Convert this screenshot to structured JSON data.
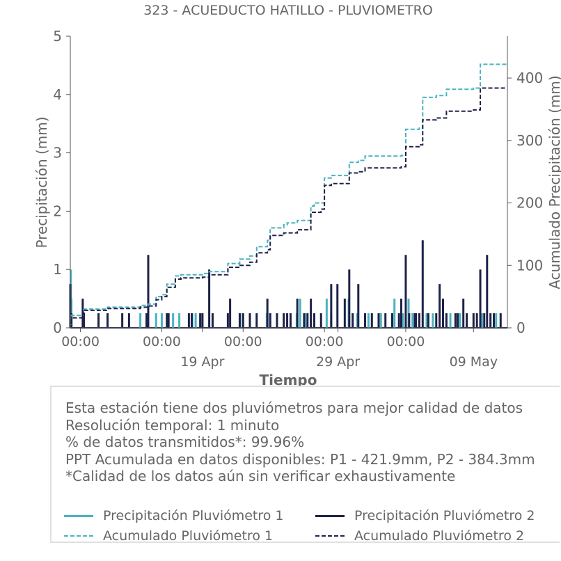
{
  "chart_data": {
    "type": "line",
    "title": "323 - ACUEDUCTO HATILLO - PLUVIOMETRO",
    "xlabel": "Tiempo",
    "ylabel_left": "Precipitación (mm)",
    "ylabel_right": "Acumulado Precipitación (mm)",
    "x_range": [
      "2025-04-09T06:00",
      "2025-05-11T12:00"
    ],
    "ylim_left": [
      0,
      5
    ],
    "ylim_right": [
      0,
      467
    ],
    "y_ticks_left": [
      0,
      1,
      2,
      3,
      4,
      5
    ],
    "y_ticks_right": [
      0,
      100,
      200,
      300,
      400
    ],
    "x_tick_labels": [
      {
        "t": "2025-04-10T00:00",
        "label": "00:00",
        "sub": ""
      },
      {
        "t": "2025-04-16T00:00",
        "label": "00:00",
        "sub": ""
      },
      {
        "t": "2025-04-19T00:00",
        "label": "",
        "sub": "19 Apr"
      },
      {
        "t": "2025-04-22T00:00",
        "label": "00:00",
        "sub": ""
      },
      {
        "t": "2025-04-29T00:00",
        "label": "",
        "sub": "29 Apr"
      },
      {
        "t": "2025-04-28T00:00",
        "label": "00:00",
        "sub": ""
      },
      {
        "t": "2025-05-04T00:00",
        "label": "00:00",
        "sub": ""
      },
      {
        "t": "2025-05-09T00:00",
        "label": "",
        "sub": "09 May"
      }
    ],
    "grid": false,
    "series": [
      {
        "name": "Precipitación Pluviómetro 1",
        "kind": "precip",
        "axis": "left",
        "color": "#4bb3c1",
        "events": [
          [
            "2025-04-09T07:00",
            1.0
          ],
          [
            "2025-04-09T08:00",
            0.5
          ],
          [
            "2025-04-10T06:00",
            0.25
          ],
          [
            "2025-04-14T10:00",
            0.25
          ],
          [
            "2025-04-15T14:00",
            0.25
          ],
          [
            "2025-04-16T00:00",
            0.25
          ],
          [
            "2025-04-16T20:00",
            0.25
          ],
          [
            "2025-04-17T07:00",
            0.25
          ],
          [
            "2025-04-18T06:00",
            0.25
          ],
          [
            "2025-04-18T12:00",
            0.25
          ],
          [
            "2025-04-19T00:00",
            0.25
          ],
          [
            "2025-04-21T19:00",
            0.25
          ],
          [
            "2025-04-22T12:00",
            0.25
          ],
          [
            "2025-04-23T18:00",
            0.25
          ],
          [
            "2025-04-24T00:00",
            0.25
          ],
          [
            "2025-04-26T05:00",
            0.5
          ],
          [
            "2025-04-26T14:00",
            0.25
          ],
          [
            "2025-04-28T04:00",
            0.5
          ],
          [
            "2025-04-28T12:00",
            0.25
          ],
          [
            "2025-04-29T19:00",
            0.5
          ],
          [
            "2025-05-01T06:00",
            0.25
          ],
          [
            "2025-05-03T19:00",
            0.25
          ],
          [
            "2025-05-03T04:00",
            0.5
          ],
          [
            "2025-05-04T05:00",
            0.5
          ],
          [
            "2025-05-04T12:00",
            0.25
          ],
          [
            "2025-05-05T13:00",
            0.25
          ],
          [
            "2025-05-07T07:00",
            0.25
          ],
          [
            "2025-05-08T00:00",
            0.25
          ],
          [
            "2025-05-09T15:00",
            0.25
          ],
          [
            "2025-05-10T16:00",
            0.25
          ],
          [
            "2025-04-25T23:00",
            0.25
          ],
          [
            "2025-04-27T00:00",
            0.25
          ],
          [
            "2025-04-30T10:00",
            0.25
          ],
          [
            "2025-05-02T04:00",
            0.25
          ],
          [
            "2025-05-04T17:00",
            0.25
          ],
          [
            "2025-05-06T00:00",
            0.25
          ]
        ]
      },
      {
        "name": "Precipitación Pluviómetro 2",
        "kind": "precip",
        "axis": "left",
        "color": "#1e2147",
        "events": [
          [
            "2025-04-09T06:00",
            0.75
          ],
          [
            "2025-04-09T08:00",
            0.25
          ],
          [
            "2025-04-10T04:00",
            0.5
          ],
          [
            "2025-04-10T06:00",
            0.25
          ],
          [
            "2025-04-11T08:00",
            0.25
          ],
          [
            "2025-04-12T00:00",
            0.25
          ],
          [
            "2025-04-13T02:00",
            0.25
          ],
          [
            "2025-04-13T14:00",
            0.25
          ],
          [
            "2025-04-14T21:00",
            0.25
          ],
          [
            "2025-04-15T00:00",
            1.25
          ],
          [
            "2025-04-16T09:00",
            0.25
          ],
          [
            "2025-04-16T12:00",
            0.25
          ],
          [
            "2025-04-18T00:00",
            0.25
          ],
          [
            "2025-04-18T05:00",
            0.25
          ],
          [
            "2025-04-19T00:00",
            0.25
          ],
          [
            "2025-04-19T18:00",
            0.25
          ],
          [
            "2025-04-20T21:00",
            0.25
          ],
          [
            "2025-04-21T01:00",
            0.5
          ],
          [
            "2025-04-21T18:00",
            0.25
          ],
          [
            "2025-04-22T00:00",
            0.25
          ],
          [
            "2025-04-22T12:00",
            0.25
          ],
          [
            "2025-04-23T00:00",
            0.25
          ],
          [
            "2025-04-23T19:00",
            0.5
          ],
          [
            "2025-04-24T00:00",
            0.25
          ],
          [
            "2025-04-24T12:00",
            0.25
          ],
          [
            "2025-04-25T00:00",
            0.25
          ],
          [
            "2025-04-26T00:00",
            0.5
          ],
          [
            "2025-04-25T06:00",
            0.25
          ],
          [
            "2025-04-25T12:00",
            0.25
          ],
          [
            "2025-04-26T12:00",
            0.25
          ],
          [
            "2025-04-26T18:00",
            0.25
          ],
          [
            "2025-04-27T06:00",
            0.25
          ],
          [
            "2025-04-28T12:00",
            0.75
          ],
          [
            "2025-04-28T23:00",
            0.75
          ],
          [
            "2025-04-29T12:00",
            0.5
          ],
          [
            "2025-04-29T20:00",
            1.0
          ],
          [
            "2025-04-30T02:00",
            0.25
          ],
          [
            "2025-04-30T12:00",
            0.75
          ],
          [
            "2025-05-01T00:00",
            0.25
          ],
          [
            "2025-05-01T12:00",
            0.25
          ],
          [
            "2025-05-02T00:00",
            0.25
          ],
          [
            "2025-05-02T12:00",
            0.25
          ],
          [
            "2025-05-03T00:00",
            0.25
          ],
          [
            "2025-05-04T06:00",
            0.25
          ],
          [
            "2025-05-05T16:00",
            0.25
          ],
          [
            "2025-05-06T06:00",
            0.25
          ],
          [
            "2025-05-07T16:00",
            0.25
          ],
          [
            "2025-05-07T20:00",
            0.25
          ],
          [
            "2025-05-08T06:00",
            0.5
          ],
          [
            "2025-05-09T06:00",
            0.25
          ],
          [
            "2025-05-09T19:00",
            0.25
          ],
          [
            "2025-05-10T00:00",
            1.25
          ],
          [
            "2025-05-10T12:00",
            0.25
          ],
          [
            "2025-05-11T00:00",
            0.25
          ],
          [
            "2025-05-05T00:00",
            0.25
          ],
          [
            "2025-04-19T12:00",
            1.0
          ],
          [
            "2025-04-18T20:00",
            0.25
          ],
          [
            "2025-04-27T00:00",
            0.5
          ],
          [
            "2025-04-27T18:00",
            0.25
          ],
          [
            "2025-05-03T12:00",
            0.25
          ],
          [
            "2025-05-03T16:00",
            0.5
          ],
          [
            "2025-05-04T00:00",
            1.25
          ],
          [
            "2025-05-04T16:00",
            0.25
          ],
          [
            "2025-05-04T18:00",
            0.25
          ],
          [
            "2025-05-06T18:00",
            0.5
          ],
          [
            "2025-05-05T06:00",
            1.5
          ],
          [
            "2025-05-06T12:00",
            0.75
          ],
          [
            "2025-05-07T00:00",
            0.25
          ],
          [
            "2025-05-08T12:00",
            0.25
          ],
          [
            "2025-05-09T00:00",
            0.25
          ],
          [
            "2025-05-09T12:00",
            1.0
          ],
          [
            "2025-05-10T06:00",
            0.25
          ]
        ]
      },
      {
        "name": "Acumulado Pluviómetro 1",
        "kind": "cumulative",
        "axis": "right",
        "color": "#4bb3c1",
        "steps": [
          [
            "2025-04-09T06:00",
            0
          ],
          [
            "2025-04-09T07:00",
            15
          ],
          [
            "2025-04-09T08:00",
            20
          ],
          [
            "2025-04-10T04:00",
            20
          ],
          [
            "2025-04-10T06:00",
            30
          ],
          [
            "2025-04-12T00:00",
            33
          ],
          [
            "2025-04-14T10:00",
            36
          ],
          [
            "2025-04-15T00:00",
            38
          ],
          [
            "2025-04-15T14:00",
            50
          ],
          [
            "2025-04-16T00:00",
            53
          ],
          [
            "2025-04-16T09:00",
            70
          ],
          [
            "2025-04-17T00:00",
            83
          ],
          [
            "2025-04-17T10:00",
            85
          ],
          [
            "2025-04-19T00:00",
            87
          ],
          [
            "2025-04-19T12:00",
            90
          ],
          [
            "2025-04-20T21:00",
            103
          ],
          [
            "2025-04-21T18:00",
            110
          ],
          [
            "2025-04-22T12:00",
            115
          ],
          [
            "2025-04-23T00:00",
            130
          ],
          [
            "2025-04-23T19:00",
            140
          ],
          [
            "2025-04-24T00:00",
            160
          ],
          [
            "2025-04-25T00:00",
            165
          ],
          [
            "2025-04-25T06:00",
            168
          ],
          [
            "2025-04-26T00:00",
            172
          ],
          [
            "2025-04-27T00:00",
            195
          ],
          [
            "2025-04-27T06:00",
            200
          ],
          [
            "2025-04-28T00:00",
            240
          ],
          [
            "2025-04-28T12:00",
            244
          ],
          [
            "2025-04-29T20:00",
            265
          ],
          [
            "2025-04-30T12:00",
            268
          ],
          [
            "2025-05-01T00:00",
            275
          ],
          [
            "2025-05-03T16:00",
            276
          ],
          [
            "2025-05-04T00:00",
            318
          ],
          [
            "2025-05-05T00:00",
            320
          ],
          [
            "2025-05-05T06:00",
            369
          ],
          [
            "2025-05-06T06:00",
            372
          ],
          [
            "2025-05-07T00:00",
            382
          ],
          [
            "2025-05-09T00:00",
            384
          ],
          [
            "2025-05-09T12:00",
            422
          ],
          [
            "2025-05-11T00:00",
            422
          ]
        ]
      },
      {
        "name": "Acumulado Pluviómetro 2",
        "kind": "cumulative",
        "axis": "right",
        "color": "#1e2147",
        "steps": [
          [
            "2025-04-09T06:00",
            0
          ],
          [
            "2025-04-09T08:00",
            16
          ],
          [
            "2025-04-10T04:00",
            18
          ],
          [
            "2025-04-10T06:00",
            28
          ],
          [
            "2025-04-12T00:00",
            31
          ],
          [
            "2025-04-14T10:00",
            33
          ],
          [
            "2025-04-15T00:00",
            35
          ],
          [
            "2025-04-15T14:00",
            45
          ],
          [
            "2025-04-16T00:00",
            50
          ],
          [
            "2025-04-16T09:00",
            65
          ],
          [
            "2025-04-17T00:00",
            78
          ],
          [
            "2025-04-17T10:00",
            80
          ],
          [
            "2025-04-19T00:00",
            81
          ],
          [
            "2025-04-19T12:00",
            85
          ],
          [
            "2025-04-20T21:00",
            97
          ],
          [
            "2025-04-21T18:00",
            100
          ],
          [
            "2025-04-22T12:00",
            105
          ],
          [
            "2025-04-23T00:00",
            120
          ],
          [
            "2025-04-23T19:00",
            125
          ],
          [
            "2025-04-24T00:00",
            148
          ],
          [
            "2025-04-25T00:00",
            152
          ],
          [
            "2025-04-26T00:00",
            157
          ],
          [
            "2025-04-27T00:00",
            185
          ],
          [
            "2025-04-27T18:00",
            190
          ],
          [
            "2025-04-28T00:00",
            228
          ],
          [
            "2025-04-28T12:00",
            231
          ],
          [
            "2025-04-29T20:00",
            248
          ],
          [
            "2025-04-30T12:00",
            250
          ],
          [
            "2025-05-01T00:00",
            256
          ],
          [
            "2025-05-03T16:00",
            258
          ],
          [
            "2025-05-04T00:00",
            290
          ],
          [
            "2025-05-05T00:00",
            293
          ],
          [
            "2025-05-05T06:00",
            333
          ],
          [
            "2025-05-06T06:00",
            336
          ],
          [
            "2025-05-07T00:00",
            347
          ],
          [
            "2025-05-09T00:00",
            349
          ],
          [
            "2025-05-09T12:00",
            384
          ],
          [
            "2025-05-11T00:00",
            384
          ]
        ]
      }
    ]
  },
  "info": {
    "lines": [
      "Esta estación tiene dos pluviómetros para mejor calidad de datos",
      "Resolución temporal: 1 minuto",
      "% de datos transmitidos*: 99.96%",
      "PPT Acumulada en datos disponibles: P1 - 421.9mm, P2 - 384.3mm",
      "*Calidad de los datos aún sin verificar exhaustivamente"
    ]
  },
  "legend": {
    "items": [
      {
        "label": "Precipitación Pluviómetro 1",
        "color": "#4bb3c1",
        "style": "solid"
      },
      {
        "label": "Precipitación Pluviómetro 2",
        "color": "#1e2147",
        "style": "solid"
      },
      {
        "label": "Acumulado Pluviómetro 1",
        "color": "#4bb3c1",
        "style": "dashed"
      },
      {
        "label": "Acumulado Pluviómetro 2",
        "color": "#1e2147",
        "style": "dashed"
      }
    ]
  }
}
